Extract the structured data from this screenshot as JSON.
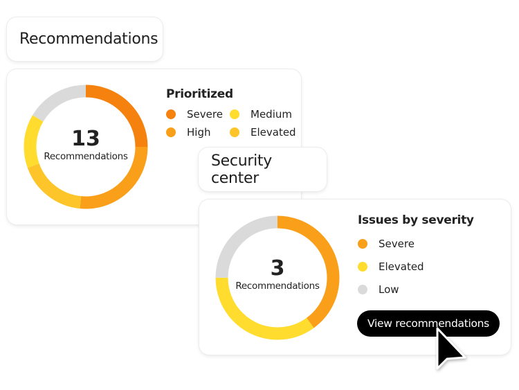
{
  "recommendations_card": {
    "title": "Recommendations",
    "count": "13",
    "count_label": "Recommendations",
    "heading": "Prioritized",
    "legend": [
      {
        "label": "Severe",
        "color": "#F5820F"
      },
      {
        "label": "Medium",
        "color": "#FFDC2E"
      },
      {
        "label": "High",
        "color": "#FA9F1A"
      },
      {
        "label": "Elevated",
        "color": "#FDC52A"
      }
    ],
    "segments": [
      {
        "label": "Severe",
        "fraction": 0.25,
        "color": "#F5820F"
      },
      {
        "label": "High",
        "fraction": 0.265,
        "color": "#FA9F1A"
      },
      {
        "label": "Elevated",
        "fraction": 0.18,
        "color": "#FDC52A"
      },
      {
        "label": "Medium",
        "fraction": 0.14,
        "color": "#FFDC2E"
      },
      {
        "label": "Low",
        "fraction": 0.165,
        "color": "#DADADA"
      }
    ]
  },
  "security_card": {
    "title": "Security center",
    "count": "3",
    "count_label": "Recommendations",
    "heading": "Issues by severity",
    "legend": [
      {
        "label": "Severe",
        "color": "#FA9F1A"
      },
      {
        "label": "Elevated",
        "color": "#FFDC2E"
      },
      {
        "label": "Low",
        "color": "#DADADA"
      }
    ],
    "segments": [
      {
        "label": "Severe",
        "fraction": 0.4,
        "color": "#FA9F1A"
      },
      {
        "label": "Elevated",
        "fraction": 0.35,
        "color": "#FFDC2E"
      },
      {
        "label": "Low",
        "fraction": 0.25,
        "color": "#DADADA"
      }
    ],
    "button_label": "View recommendations"
  }
}
